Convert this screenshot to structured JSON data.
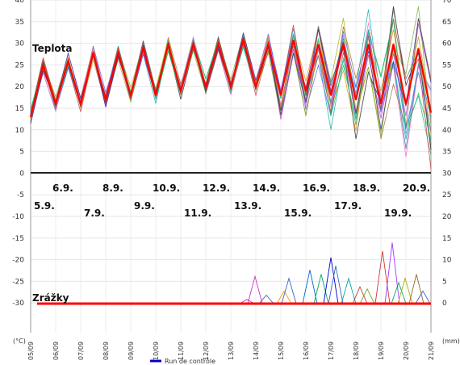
{
  "chart_data": {
    "type": "line",
    "panels": [
      "Teplota",
      "Zrážky"
    ],
    "left_axis_unit": "(°C)",
    "right_axis_unit": "(mm)",
    "left_ticks": [
      "40",
      "35",
      "30",
      "25",
      "20",
      "15",
      "10",
      "5",
      "0",
      "-5",
      "-10",
      "-15",
      "-20",
      "-25",
      "-30"
    ],
    "right_ticks": [
      "70",
      "65",
      "60",
      "55",
      "50",
      "45",
      "40",
      "35",
      "30",
      "25",
      "20",
      "15",
      "10",
      "5",
      "0"
    ],
    "x_ticks": [
      "05/09",
      "06/09",
      "07/09",
      "08/09",
      "09/09",
      "10/09",
      "11/09",
      "12/09",
      "13/09",
      "14/09",
      "15/09",
      "16/09",
      "17/09",
      "18/09",
      "19/09",
      "20/09",
      "21/09"
    ],
    "date_labels_upper": [
      "6.9.",
      "8.9.",
      "10.9.",
      "12.9.",
      "14.9.",
      "16.9.",
      "18.9.",
      "20.9."
    ],
    "date_labels_lower": [
      "5.9.",
      "7.9.",
      "9.9.",
      "11.9.",
      "13.9.",
      "15.9.",
      "17.9.",
      "19.9."
    ],
    "legend": "Run de contrôle",
    "temp_series": {
      "name": "",
      "x": [
        "05/09 00",
        "05/09 12",
        "06/09 00",
        "06/09 12",
        "07/09 00",
        "07/09 12",
        "08/09 00",
        "08/09 12",
        "09/09 00",
        "09/09 12",
        "10/09 00",
        "10/09 12",
        "11/09 00",
        "11/09 12",
        "12/09 00",
        "12/09 12",
        "13/09 00",
        "13/09 12",
        "14/09 00",
        "14/09 12",
        "15/09 00",
        "15/09 12",
        "16/09 00",
        "16/09 12",
        "17/09 00",
        "17/09 12",
        "18/09 00",
        "18/09 12",
        "19/09 00",
        "19/09 12",
        "20/09 00",
        "20/09 12",
        "21/09 00"
      ],
      "values": [
        13,
        25,
        16,
        26,
        16,
        28,
        17,
        28,
        18,
        29,
        18,
        30,
        19,
        30,
        20,
        30,
        20,
        31,
        20,
        30,
        18,
        31,
        19,
        30,
        18,
        30,
        17,
        30,
        16,
        30,
        16,
        29,
        14
      ]
    },
    "precip_series": {
      "x": [
        "05/09",
        "08/09",
        "11/09",
        "13/09",
        "14/09",
        "15/09",
        "16/09",
        "17/09",
        "18/09",
        "19/09",
        "20/09",
        "21/09"
      ],
      "values": [
        0,
        0,
        0,
        0.3,
        0.5,
        0.6,
        1,
        1.5,
        1,
        1.2,
        0.8,
        0.2
      ]
    },
    "colors": {
      "control": "#ff0000",
      "legend_line": "#0000cc"
    }
  }
}
